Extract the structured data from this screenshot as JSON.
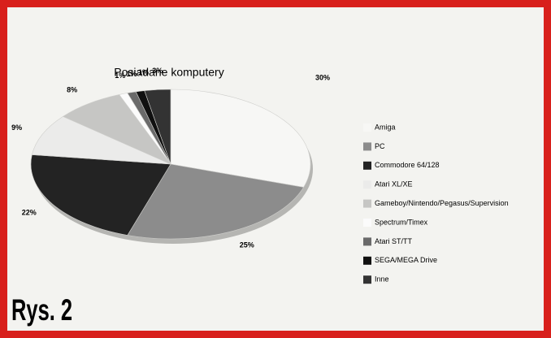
{
  "chart_data": {
    "type": "pie",
    "title": "Posiadane komputery",
    "caption": "Rys. 2",
    "categories": [
      "Amiga",
      "PC",
      "Commodore 64/128",
      "Atari XL/XE",
      "Gameboy/Nintendo/Pegasus/Supervision",
      "Spectrum/Timex",
      "Atari ST/TT",
      "SEGA/MEGA Drive",
      "Inne"
    ],
    "values": [
      30,
      25,
      22,
      9,
      8,
      1,
      1,
      1,
      3
    ],
    "value_labels": [
      "30%",
      "25%",
      "22%",
      "9%",
      "8%",
      "1%",
      "1%",
      "1%",
      "3%"
    ],
    "colors": [
      "#f7f7f5",
      "#8c8c8c",
      "#232323",
      "#ebebea",
      "#c6c6c4",
      "#fbfbfb",
      "#6a6a6a",
      "#101010",
      "#333333"
    ],
    "legend": "right"
  }
}
